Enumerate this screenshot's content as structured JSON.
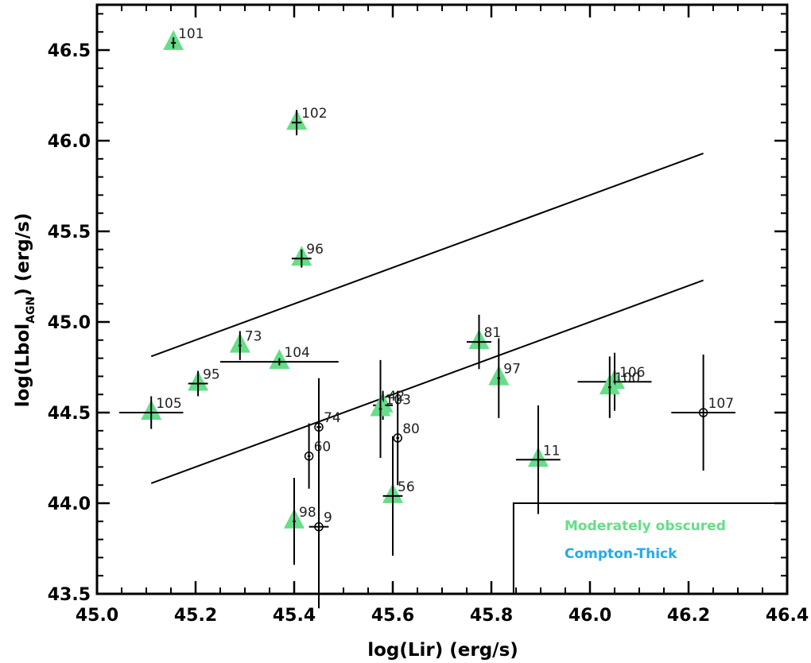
{
  "chart_data": {
    "type": "scatter",
    "xlabel": "log(Lir) (erg/s)",
    "ylabel": {
      "main": "log(Lbol",
      "sub": "AGN",
      "tail": ") (erg/s)"
    },
    "xlim": [
      45.0,
      46.4
    ],
    "ylim": [
      43.5,
      46.75
    ],
    "xticks": [
      45.0,
      45.2,
      45.4,
      45.6,
      45.8,
      46.0,
      46.2,
      46.4
    ],
    "xtick_labels": [
      "45.0",
      "45.2",
      "45.4",
      "45.6",
      "45.8",
      "46.0",
      "46.2",
      "46.4"
    ],
    "yticks": [
      43.5,
      44.0,
      44.5,
      45.0,
      45.5,
      46.0,
      46.5
    ],
    "ytick_labels": [
      "43.5",
      "44.0",
      "44.5",
      "45.0",
      "45.5",
      "46.0",
      "46.5"
    ],
    "grid": false,
    "legend": {
      "placement": "bottom-right",
      "entries": [
        {
          "label": "Moderately obscured",
          "color": "#66dd88"
        },
        {
          "label": "Compton-Thick",
          "color": "#22aaee"
        }
      ]
    },
    "colors": {
      "moderately_obscured": "#66dd88",
      "compton_thick": "#22aaee",
      "axes": "#000000"
    },
    "points": [
      {
        "label": "101",
        "x": 45.155,
        "y": 46.54,
        "marker": "triangle",
        "xerr": 0.005,
        "yerr": 0.03
      },
      {
        "label": "102",
        "x": 45.405,
        "y": 46.1,
        "marker": "triangle",
        "xerr": 0.01,
        "yerr": 0.07
      },
      {
        "label": "96",
        "x": 45.415,
        "y": 45.35,
        "marker": "triangle",
        "xerr": 0.02,
        "yerr": 0.05
      },
      {
        "label": "73",
        "x": 45.29,
        "y": 44.87,
        "marker": "triangle",
        "xerr": 0.003,
        "yerr": 0.08
      },
      {
        "label": "104",
        "x": 45.37,
        "y": 44.78,
        "marker": "triangle",
        "xerr": 0.12,
        "yerr": 0.02
      },
      {
        "label": "95",
        "x": 45.205,
        "y": 44.66,
        "marker": "triangle",
        "xerr": 0.02,
        "yerr": 0.07
      },
      {
        "label": "105",
        "x": 45.11,
        "y": 44.5,
        "marker": "triangle",
        "xerr": 0.065,
        "yerr": 0.09
      },
      {
        "label": "81",
        "x": 45.775,
        "y": 44.89,
        "marker": "triangle",
        "xerr": 0.025,
        "yerr": 0.15
      },
      {
        "label": "97",
        "x": 45.815,
        "y": 44.69,
        "marker": "triangle",
        "xerr": 0.003,
        "yerr": 0.22
      },
      {
        "label": "106",
        "x": 46.05,
        "y": 44.67,
        "marker": "triangle",
        "xerr": 0.075,
        "yerr": 0.16
      },
      {
        "label": "100",
        "x": 46.04,
        "y": 44.64,
        "marker": "triangle",
        "xerr": 0.003,
        "yerr": 0.17
      },
      {
        "label": "42",
        "x": 45.58,
        "y": 44.54,
        "marker": "triangle",
        "xerr": 0.02,
        "yerr": 0.08
      },
      {
        "label": "103",
        "x": 45.575,
        "y": 44.52,
        "marker": "triangle",
        "xerr": 0.003,
        "yerr": 0.27
      },
      {
        "label": "11",
        "x": 45.895,
        "y": 44.24,
        "marker": "triangle",
        "xerr": 0.045,
        "yerr": 0.3
      },
      {
        "label": "56",
        "x": 45.6,
        "y": 44.04,
        "marker": "triangle",
        "xerr": 0.02,
        "yerr": 0.33
      },
      {
        "label": "98",
        "x": 45.4,
        "y": 43.9,
        "marker": "triangle",
        "xerr": 0.003,
        "yerr": 0.24
      },
      {
        "label": "107",
        "x": 46.23,
        "y": 44.5,
        "marker": "circle",
        "xerr": 0.065,
        "yerr": 0.32
      },
      {
        "label": "74",
        "x": 45.45,
        "y": 44.42,
        "marker": "circle",
        "xerr": 0.005,
        "yerr": 0.27
      },
      {
        "label": "60",
        "x": 45.43,
        "y": 44.26,
        "marker": "circle",
        "xerr": 0.003,
        "yerr": 0.18
      },
      {
        "label": "80",
        "x": 45.61,
        "y": 44.36,
        "marker": "circle",
        "xerr": 0.003,
        "yerr": 0.26
      },
      {
        "label": "9",
        "x": 45.45,
        "y": 43.87,
        "marker": "circle",
        "xerr": 0.02,
        "yerr": 0.45
      }
    ],
    "lines": [
      {
        "x": [
          45.11,
          46.23
        ],
        "y": [
          44.81,
          45.93
        ]
      },
      {
        "x": [
          45.11,
          46.23
        ],
        "y": [
          44.11,
          45.23
        ]
      }
    ],
    "regions": [
      {
        "x_from": 45.845,
        "y_top": 44.0
      }
    ]
  }
}
